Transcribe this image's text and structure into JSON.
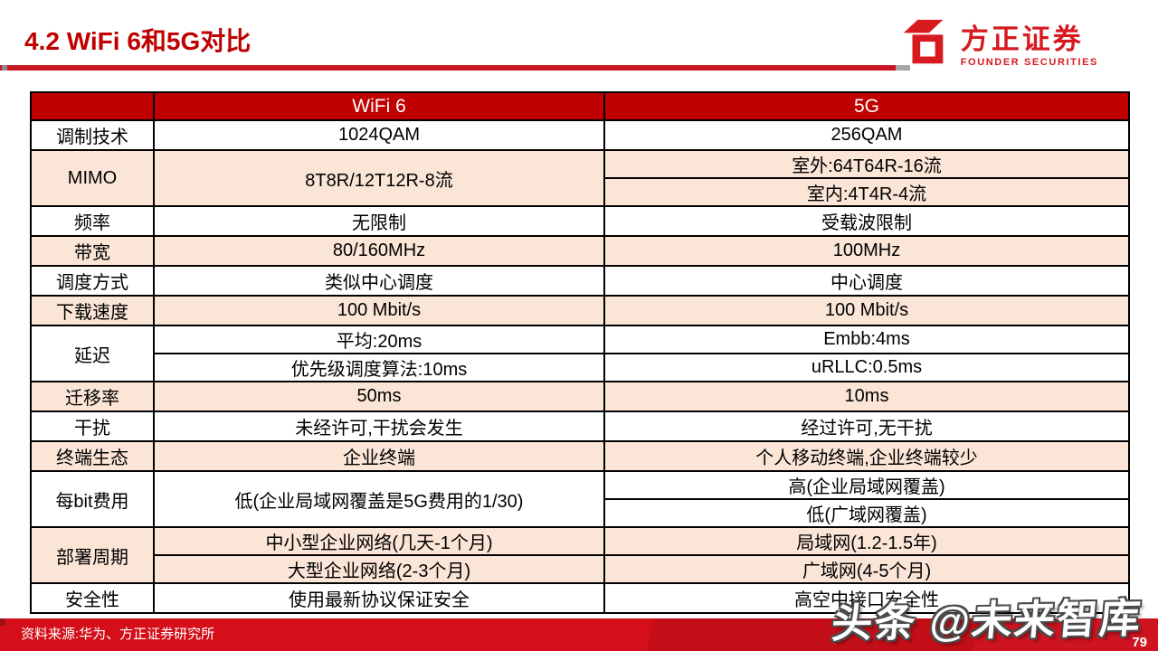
{
  "page": {
    "title": "4.2 WiFi 6和5G对比",
    "page_number": "79",
    "watermark": "头条 @未来智库",
    "source_note": "资料来源:华为、方正证券研究所"
  },
  "logo": {
    "name_cn": "方正证券",
    "name_en": "FOUNDER SECURITIES",
    "icon": "founder-cube-icon",
    "color": "#D71920"
  },
  "colors": {
    "header_bg": "#C00000",
    "row_bg_white": "#FFFFFF",
    "row_bg_peach": "#FBE5D6",
    "title_red": "#C00000",
    "underline_red": "#C81622",
    "footer_red": "#D40F1A",
    "border": "#000000"
  },
  "table": {
    "columns": [
      "",
      "WiFi 6",
      "5G"
    ],
    "rows": [
      {
        "label": "调制技术",
        "bg": "white",
        "wifi6": [
          "1024QAM"
        ],
        "g5": [
          "256QAM"
        ]
      },
      {
        "label": "MIMO",
        "bg": "peach",
        "wifi6": [
          "8T8R/12T12R-8流"
        ],
        "g5": [
          "室外:64T64R-16流",
          "室内:4T4R-4流"
        ]
      },
      {
        "label": "频率",
        "bg": "white",
        "wifi6": [
          "无限制"
        ],
        "g5": [
          "受载波限制"
        ]
      },
      {
        "label": "带宽",
        "bg": "peach",
        "wifi6": [
          "80/160MHz"
        ],
        "g5": [
          "100MHz"
        ]
      },
      {
        "label": "调度方式",
        "bg": "white",
        "wifi6": [
          "类似中心调度"
        ],
        "g5": [
          "中心调度"
        ]
      },
      {
        "label": "下载速度",
        "bg": "peach",
        "wifi6": [
          "100 Mbit/s"
        ],
        "g5": [
          "100 Mbit/s"
        ]
      },
      {
        "label": "延迟",
        "bg": "white",
        "wifi6": [
          "平均:20ms",
          "优先级调度算法:10ms"
        ],
        "g5": [
          "Embb:4ms",
          "uRLLC:0.5ms"
        ]
      },
      {
        "label": "迁移率",
        "bg": "peach",
        "wifi6": [
          "50ms"
        ],
        "g5": [
          "10ms"
        ]
      },
      {
        "label": "干扰",
        "bg": "white",
        "wifi6": [
          "未经许可,干扰会发生"
        ],
        "g5": [
          "经过许可,无干扰"
        ]
      },
      {
        "label": "终端生态",
        "bg": "peach",
        "wifi6": [
          "企业终端"
        ],
        "g5": [
          "个人移动终端,企业终端较少"
        ]
      },
      {
        "label": "每bit费用",
        "bg": "white",
        "wifi6": [
          "低(企业局域网覆盖是5G费用的1/30)"
        ],
        "g5": [
          "高(企业局域网覆盖)",
          "低(广域网覆盖)"
        ]
      },
      {
        "label": "部署周期",
        "bg": "peach",
        "wifi6": [
          "中小型企业网络(几天-1个月)",
          "大型企业网络(2-3个月)"
        ],
        "g5": [
          "局域网(1.2-1.5年)",
          "广域网(4-5个月)"
        ]
      },
      {
        "label": "安全性",
        "bg": "white",
        "wifi6": [
          "使用最新协议保证安全"
        ],
        "g5": [
          "高空中接口安全性"
        ]
      }
    ]
  }
}
